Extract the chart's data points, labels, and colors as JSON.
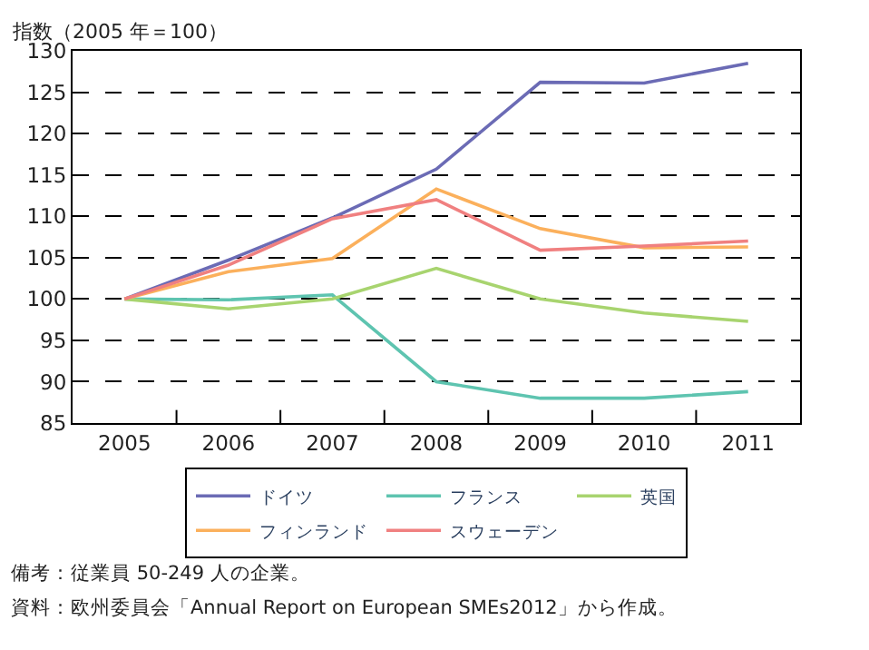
{
  "chart_data": {
    "type": "line",
    "ylabel": "指数（2005 年＝100）",
    "categories": [
      "2005",
      "2006",
      "2007",
      "2008",
      "2009",
      "2010",
      "2011"
    ],
    "series": [
      {
        "name": "ドイツ",
        "color": "#6b6bb5",
        "values": [
          100,
          104.7,
          109.8,
          115.7,
          126.2,
          126.1,
          128.5
        ]
      },
      {
        "name": "フランス",
        "color": "#5ec4b0",
        "values": [
          100,
          99.9,
          100.5,
          90.0,
          88.0,
          88.0,
          88.8
        ]
      },
      {
        "name": "英国",
        "color": "#a8d46f",
        "values": [
          100,
          98.8,
          100.0,
          103.7,
          100.0,
          98.3,
          97.3
        ]
      },
      {
        "name": "フィンランド",
        "color": "#fbb05c",
        "values": [
          100,
          103.3,
          104.9,
          113.3,
          108.5,
          106.2,
          106.3
        ]
      },
      {
        "name": "スウェーデン",
        "color": "#f08080",
        "values": [
          100,
          104.1,
          109.7,
          112.0,
          105.9,
          106.4,
          107.0
        ]
      }
    ],
    "ylim": [
      85,
      130
    ],
    "yticks": [
      85,
      90,
      95,
      100,
      105,
      110,
      115,
      120,
      125,
      130
    ],
    "grid": "y",
    "legend": "bottom",
    "marker": "none",
    "line_style": "solid",
    "annotations": [
      "備考：従業員 50-249 人の企業。",
      "資料：欧州委員会「Annual Report on European SMEs2012」から作成。"
    ]
  }
}
